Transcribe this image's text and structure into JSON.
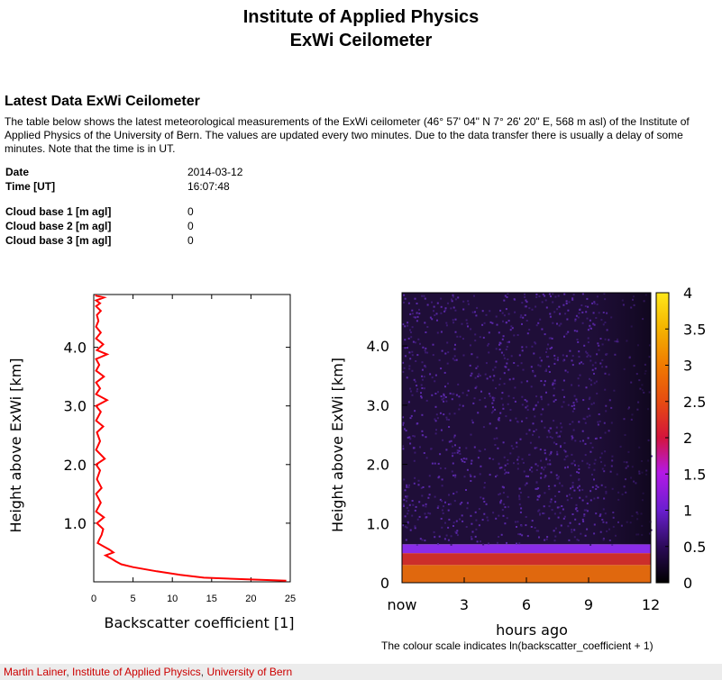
{
  "page": {
    "title_line1": "Institute of Applied Physics",
    "title_line2": "ExWi Ceilometer",
    "section_title": "Latest Data ExWi Ceilometer",
    "intro": "The table below shows the latest meteorological measurements of the ExWi ceilometer (46° 57' 04\" N 7° 26' 20\" E, 568 m asl) of the Institute of Applied Physics of the University of Bern. The values are updated every two minutes. Due to the data transfer there is usually a delay of some minutes. Note that the time is in UT."
  },
  "measurements": {
    "date_label": "Date",
    "date_value": "2014-03-12",
    "time_label": "Time [UT]",
    "time_value": "16:07:48",
    "cb1_label": "Cloud base 1 [m agl]",
    "cb1_value": "0",
    "cb2_label": "Cloud base 2 [m agl]",
    "cb2_value": "0",
    "cb3_label": "Cloud base 3 [m agl]",
    "cb3_value": "0"
  },
  "caption": "The colour scale indicates ln(backscatter_coefficient + 1)",
  "footer": {
    "author": "Martin Lainer",
    "institute": "Institute of Applied Physics",
    "university": "University of Bern"
  },
  "chart_data": [
    {
      "type": "line",
      "xlabel": "Backscatter coefficient [1]",
      "ylabel": "Height above ExWi [km]",
      "xlim": [
        0,
        25
      ],
      "ylim": [
        0,
        4.9
      ],
      "xticks": [
        "0",
        "5",
        "10",
        "15",
        "20",
        "25"
      ],
      "yticks": [
        "1.0",
        "2.0",
        "3.0",
        "4.0"
      ],
      "series": [
        {
          "color": "#ff0000",
          "x": [
            24.5,
            20,
            14,
            11,
            8,
            5,
            3.5,
            2.8,
            2.2,
            1.5,
            2.5,
            2.0,
            1.3,
            0.5,
            0.7,
            1.0,
            1.2,
            0.4,
            1.3,
            0.3,
            0.9,
            0.3,
            1.0,
            0.4,
            0.8,
            0.3,
            1.4,
            0.3,
            0.8,
            0.4,
            1.2,
            0.3,
            0.9,
            0.3,
            1.7,
            0.3,
            0.8,
            0.3,
            1.3,
            0.3,
            0.7,
            0.3,
            1.7,
            0.4,
            1.2,
            0.3,
            0.9,
            0.3,
            0.6,
            0.4,
            0.9,
            0.3,
            0.8,
            0.3,
            1.3,
            0.3,
            0.3
          ],
          "y": [
            0.02,
            0.04,
            0.07,
            0.12,
            0.18,
            0.25,
            0.3,
            0.35,
            0.4,
            0.45,
            0.5,
            0.55,
            0.6,
            0.66,
            0.72,
            0.8,
            0.9,
            1.0,
            1.1,
            1.2,
            1.35,
            1.5,
            1.6,
            1.75,
            1.9,
            2.0,
            2.1,
            2.25,
            2.4,
            2.55,
            2.65,
            2.75,
            2.9,
            3.0,
            3.1,
            3.2,
            3.3,
            3.4,
            3.5,
            3.6,
            3.7,
            3.8,
            3.88,
            3.95,
            4.05,
            4.15,
            4.25,
            4.35,
            4.45,
            4.55,
            4.62,
            4.7,
            4.75,
            4.8,
            4.85,
            4.88,
            4.9
          ]
        }
      ]
    },
    {
      "type": "heatmap",
      "xlabel": "hours ago",
      "ylabel": "Height above ExWi [km]",
      "xticks": [
        "now",
        "3",
        "6",
        "9",
        "12"
      ],
      "yticks": [
        "0",
        "1.0",
        "2.0",
        "3.0",
        "4.0"
      ],
      "xlim": [
        0,
        12
      ],
      "ylim": [
        0,
        4.9
      ],
      "colorbar": {
        "range": [
          0,
          4
        ],
        "ticks": [
          "0",
          "0.5",
          "1",
          "1.5",
          "2",
          "2.5",
          "3",
          "3.5",
          "4"
        ]
      },
      "description_layers": [
        {
          "from_km": 0.0,
          "to_km": 0.3,
          "value": 2.8
        },
        {
          "from_km": 0.3,
          "to_km": 0.5,
          "value": 2.2
        },
        {
          "from_km": 0.5,
          "to_km": 0.65,
          "value": 1.2
        },
        {
          "from_km": 0.65,
          "to_km": 4.9,
          "value": 0.3
        }
      ]
    }
  ]
}
